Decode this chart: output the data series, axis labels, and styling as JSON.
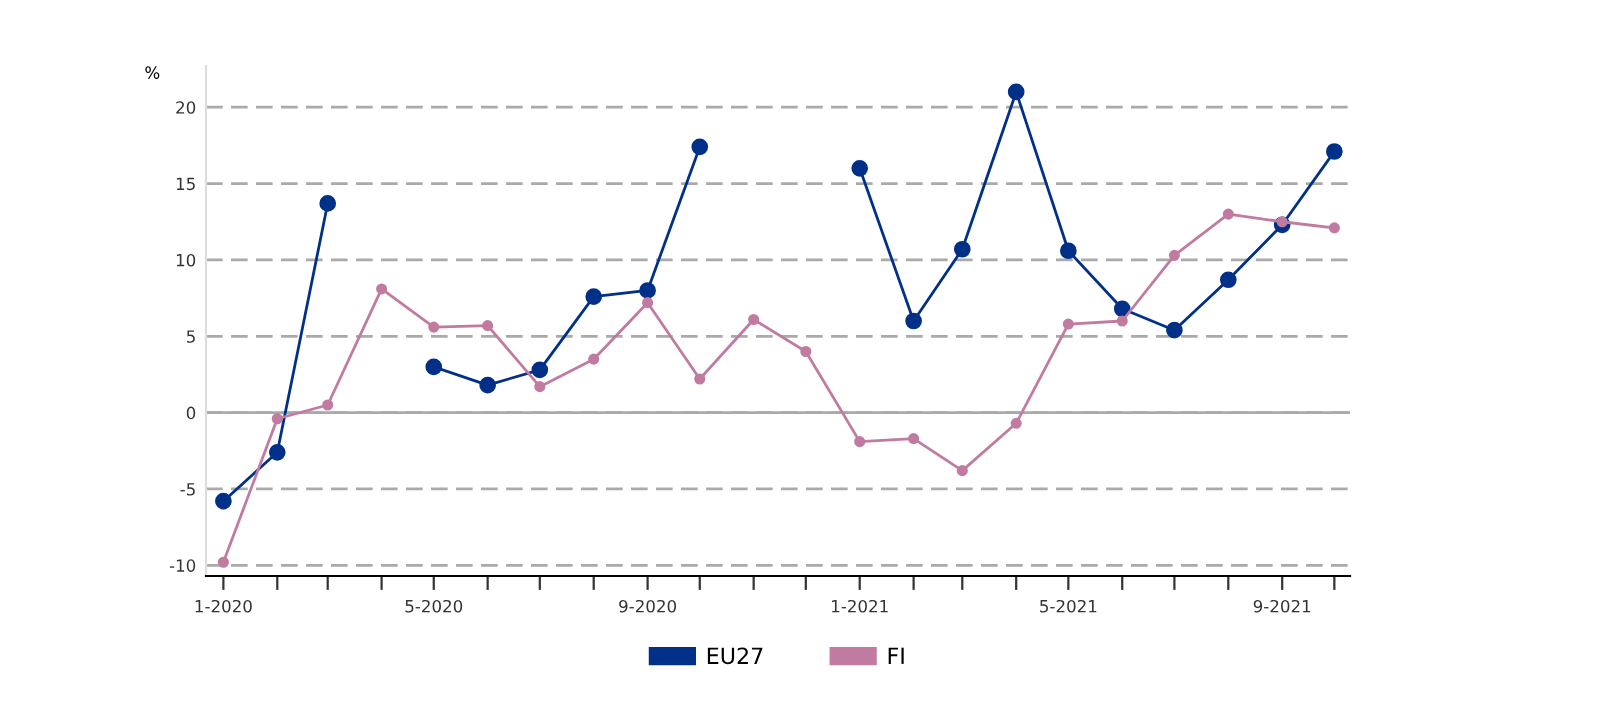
{
  "chart_data": {
    "type": "line",
    "ylabel": "%",
    "x": [
      "2020-01",
      "2020-02",
      "2020-03",
      "2020-04",
      "2020-05",
      "2020-06",
      "2020-07",
      "2020-08",
      "2020-09",
      "2020-10",
      "2020-11",
      "2020-12",
      "2021-01",
      "2021-02",
      "2021-03",
      "2021-04",
      "2021-05",
      "2021-06",
      "2021-07",
      "2021-08",
      "2021-09",
      "2021-10"
    ],
    "series": [
      {
        "name": "EU27",
        "color": "#003087",
        "values": [
          -5.8,
          -2.6,
          13.7,
          null,
          3.0,
          1.8,
          2.8,
          7.6,
          8.0,
          17.4,
          null,
          null,
          16.0,
          6.0,
          10.7,
          21.0,
          10.6,
          6.8,
          5.4,
          8.7,
          12.3,
          17.1
        ]
      },
      {
        "name": "FI",
        "color": "#c27ba0",
        "values": [
          -9.8,
          -0.4,
          0.5,
          8.1,
          5.6,
          5.7,
          1.7,
          3.5,
          7.2,
          2.2,
          6.1,
          4.0,
          -1.9,
          -1.7,
          -3.8,
          -0.7,
          5.8,
          6.0,
          10.3,
          13.0,
          12.5,
          12.1
        ]
      }
    ],
    "ylim": [
      -10.7,
      22.7
    ],
    "yticks": [
      -10,
      -5,
      0,
      5,
      10,
      15,
      20
    ],
    "xlim": [
      "2019-12-22",
      "2021-10-10"
    ],
    "xticks": [
      {
        "value": "2020-01",
        "label": "1-2020"
      },
      {
        "value": "2020-02",
        "label": null
      },
      {
        "value": "2020-03",
        "label": null
      },
      {
        "value": "2020-04",
        "label": null
      },
      {
        "value": "2020-05",
        "label": "5-2020"
      },
      {
        "value": "2020-06",
        "label": null
      },
      {
        "value": "2020-07",
        "label": null
      },
      {
        "value": "2020-08",
        "label": null
      },
      {
        "value": "2020-09",
        "label": "9-2020"
      },
      {
        "value": "2020-10",
        "label": null
      },
      {
        "value": "2020-11",
        "label": null
      },
      {
        "value": "2020-12",
        "label": null
      },
      {
        "value": "2021-01",
        "label": "1-2021"
      },
      {
        "value": "2021-02",
        "label": null
      },
      {
        "value": "2021-03",
        "label": null
      },
      {
        "value": "2021-04",
        "label": null
      },
      {
        "value": "2021-05",
        "label": "5-2021"
      },
      {
        "value": "2021-06",
        "label": null
      },
      {
        "value": "2021-07",
        "label": null
      },
      {
        "value": "2021-08",
        "label": null
      },
      {
        "value": "2021-09",
        "label": "9-2021"
      },
      {
        "value": "2021-10",
        "label": null
      }
    ],
    "ref_lines": [
      {
        "axis": "y",
        "value": 0,
        "color": "#aaaaaa",
        "line_style": "solid"
      }
    ],
    "grid": "y",
    "legend": "bottom",
    "marker": "circle",
    "line_style": "solid"
  }
}
